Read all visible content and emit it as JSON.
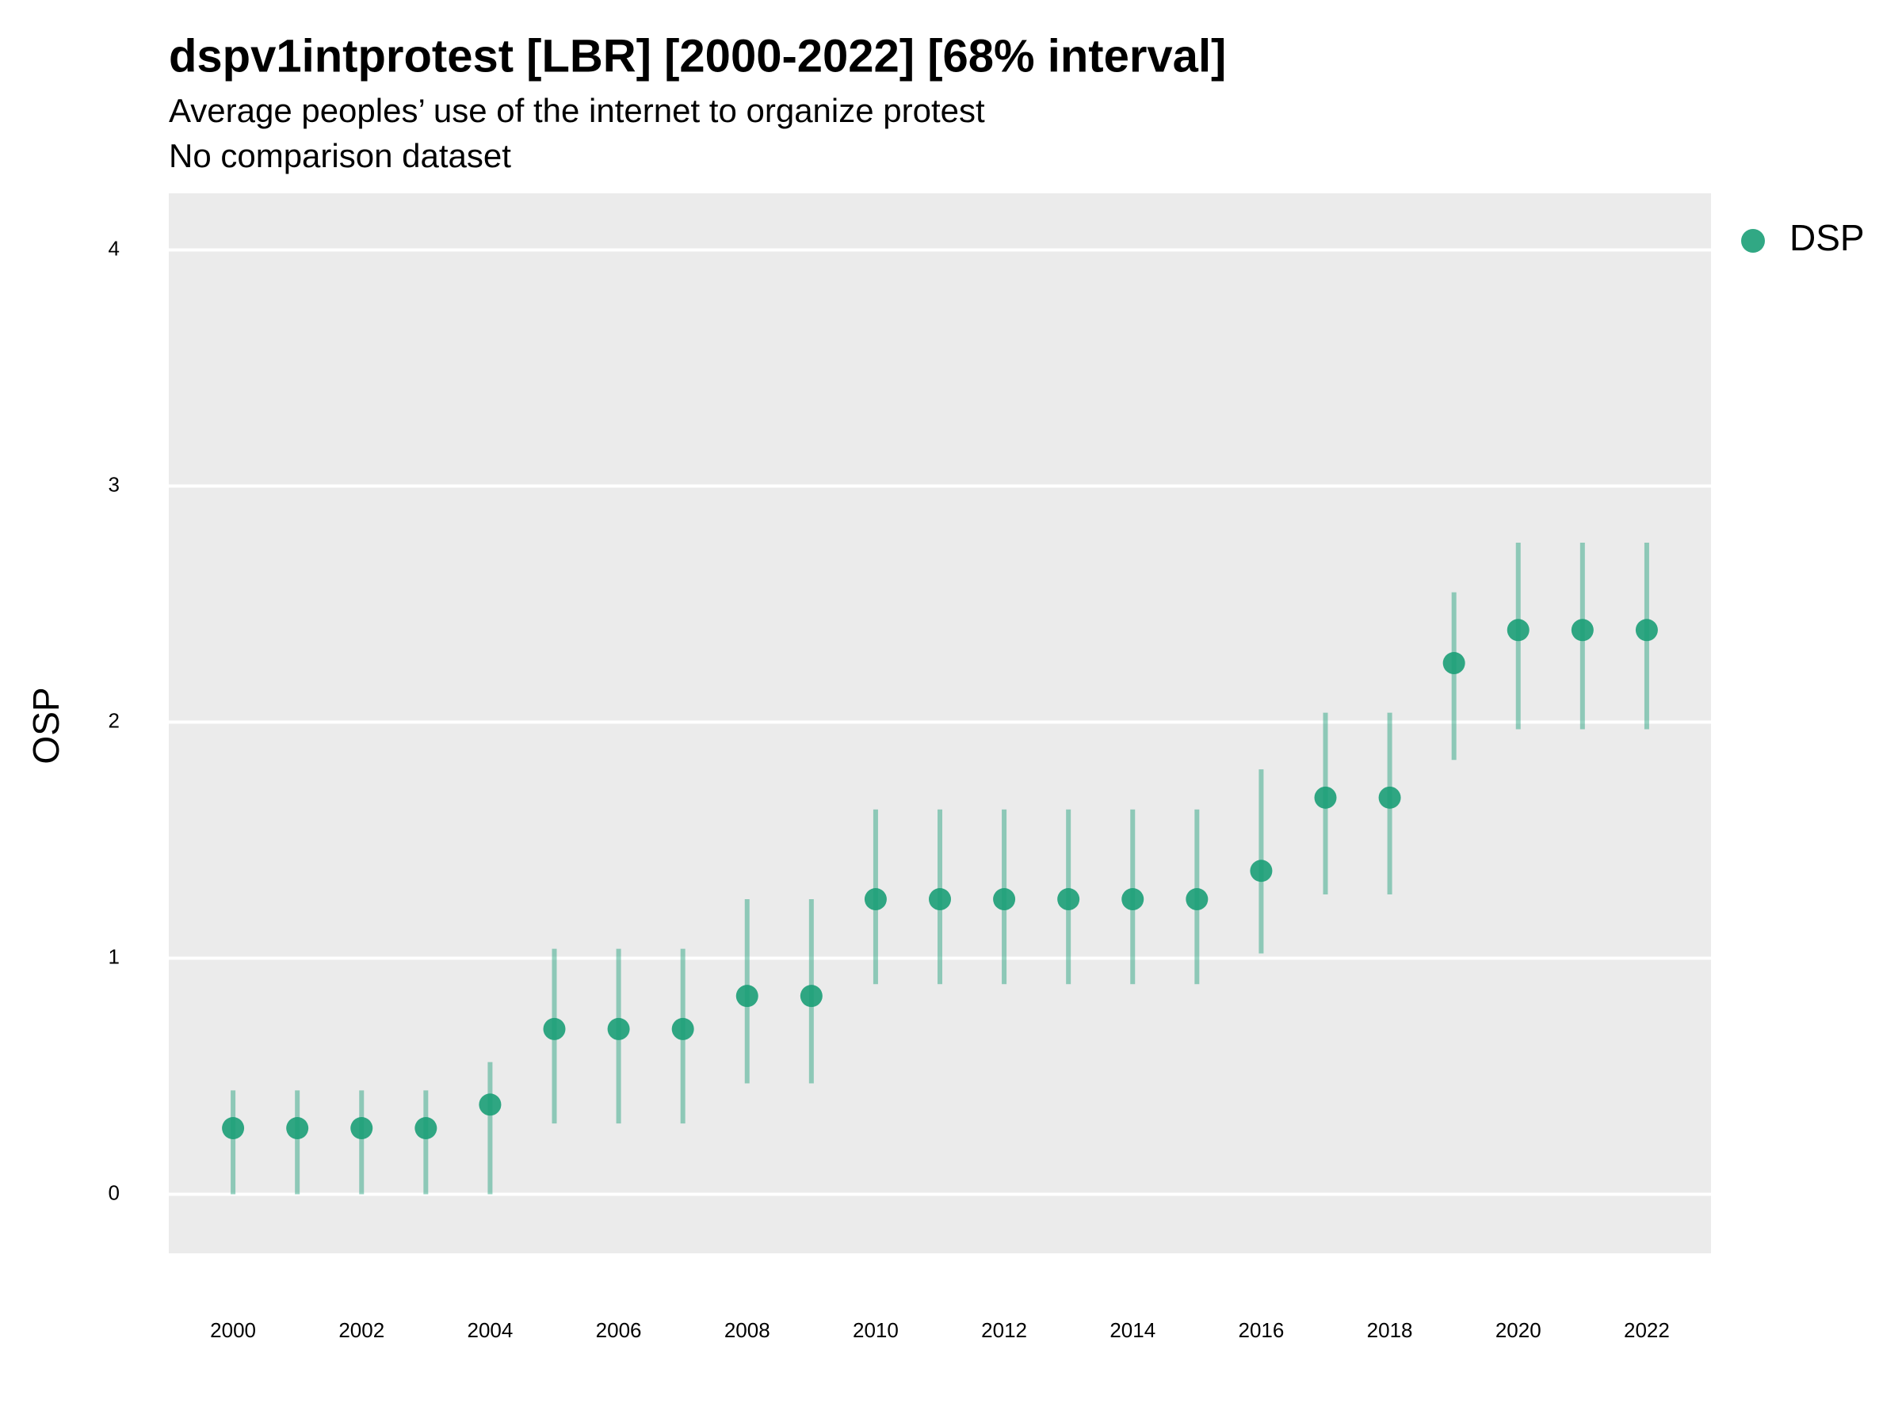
{
  "chart_data": {
    "type": "pointrange",
    "title": "dspv1intprotest [LBR] [2000-2022] [68% interval]",
    "subtitle": "Average peoples’ use of the internet to organize protest",
    "subtitle2": "No comparison dataset",
    "ylabel": "OSP",
    "x": [
      2000,
      2001,
      2002,
      2003,
      2004,
      2005,
      2006,
      2007,
      2008,
      2009,
      2010,
      2011,
      2012,
      2013,
      2014,
      2015,
      2016,
      2017,
      2018,
      2019,
      2020,
      2021,
      2022
    ],
    "series": [
      {
        "name": "DSP",
        "color": "#1b9e77",
        "values": [
          0.28,
          0.28,
          0.28,
          0.28,
          0.38,
          0.7,
          0.7,
          0.7,
          0.84,
          0.84,
          1.25,
          1.25,
          1.25,
          1.25,
          1.25,
          1.25,
          1.37,
          1.68,
          1.68,
          2.25,
          2.39,
          2.39,
          2.39
        ],
        "lower": [
          0,
          0,
          0,
          0,
          0,
          0.3,
          0.3,
          0.3,
          0.47,
          0.47,
          0.89,
          0.89,
          0.89,
          0.89,
          0.89,
          0.89,
          1.02,
          1.27,
          1.27,
          1.84,
          1.97,
          1.97,
          1.97
        ],
        "upper": [
          0.44,
          0.44,
          0.44,
          0.44,
          0.56,
          1.04,
          1.04,
          1.04,
          1.25,
          1.25,
          1.63,
          1.63,
          1.63,
          1.63,
          1.63,
          1.63,
          1.8,
          2.04,
          2.04,
          2.55,
          2.76,
          2.76,
          2.76
        ]
      }
    ],
    "xlim": [
      1999,
      2023
    ],
    "xticks": [
      2000,
      2002,
      2004,
      2006,
      2008,
      2010,
      2012,
      2014,
      2016,
      2018,
      2020,
      2022
    ],
    "ylim": [
      -0.25,
      4.24
    ],
    "yticks": [
      0,
      1,
      2,
      3,
      4
    ],
    "grid": true,
    "legend": "right"
  }
}
